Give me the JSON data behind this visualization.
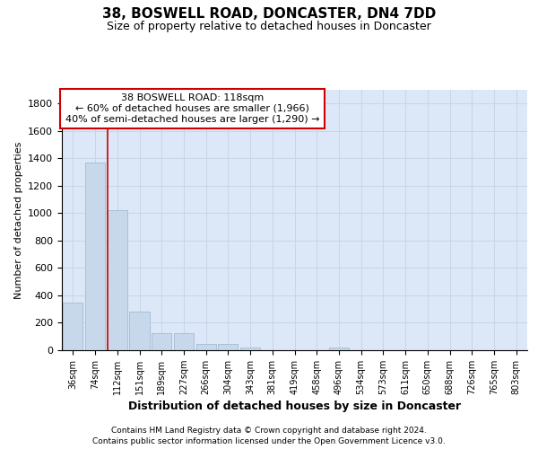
{
  "title1": "38, BOSWELL ROAD, DONCASTER, DN4 7DD",
  "title2": "Size of property relative to detached houses in Doncaster",
  "xlabel": "Distribution of detached houses by size in Doncaster",
  "ylabel": "Number of detached properties",
  "footnote1": "Contains HM Land Registry data © Crown copyright and database right 2024.",
  "footnote2": "Contains public sector information licensed under the Open Government Licence v3.0.",
  "categories": [
    "36sqm",
    "74sqm",
    "112sqm",
    "151sqm",
    "189sqm",
    "227sqm",
    "266sqm",
    "304sqm",
    "343sqm",
    "381sqm",
    "419sqm",
    "458sqm",
    "496sqm",
    "534sqm",
    "573sqm",
    "611sqm",
    "650sqm",
    "688sqm",
    "726sqm",
    "765sqm",
    "803sqm"
  ],
  "values": [
    350,
    1370,
    1020,
    280,
    125,
    125,
    45,
    45,
    20,
    0,
    0,
    0,
    20,
    0,
    0,
    0,
    0,
    0,
    0,
    0,
    0
  ],
  "bar_color": "#c8d8eb",
  "bar_edge_color": "#a0bcd4",
  "red_line_index": 2,
  "annotation_text1": "38 BOSWELL ROAD: 118sqm",
  "annotation_text2": "← 60% of detached houses are smaller (1,966)",
  "annotation_text3": "40% of semi-detached houses are larger (1,290) →",
  "annotation_box_facecolor": "#ffffff",
  "annotation_border_color": "#cc0000",
  "ylim": [
    0,
    1900
  ],
  "yticks": [
    0,
    200,
    400,
    600,
    800,
    1000,
    1200,
    1400,
    1600,
    1800
  ],
  "grid_color": "#c8d4e8",
  "plot_bg_color": "#dce8f8",
  "fig_bg_color": "#ffffff",
  "title1_fontsize": 11,
  "title2_fontsize": 9,
  "ylabel_fontsize": 8,
  "xlabel_fontsize": 9,
  "ytick_fontsize": 8,
  "xtick_fontsize": 7,
  "footnote_fontsize": 6.5
}
